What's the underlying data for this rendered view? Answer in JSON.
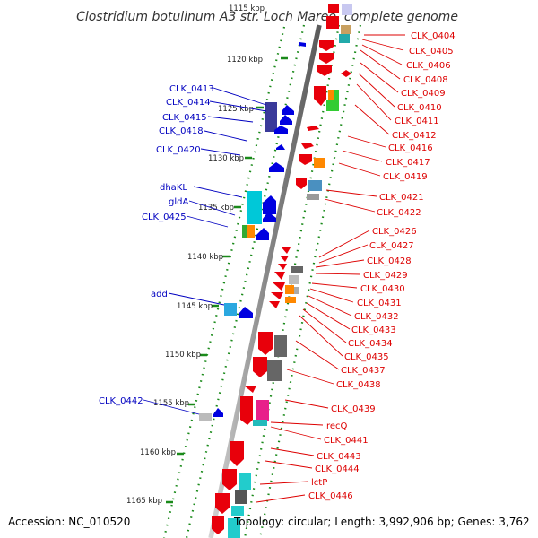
{
  "title": "Clostridium botulinum A3 str. Loch Maree, complete genome",
  "footer": {
    "accession": "Accession: NC_010520",
    "summary": "Topology: circular; Length: 3,992,906 bp; Genes: 3,762"
  },
  "scale_labels": [
    "1115 kbp",
    "1120 kbp",
    "1125 kbp",
    "1130 kbp",
    "1135 kbp",
    "1140 kbp",
    "1145 kbp",
    "1150 kbp",
    "1155 kbp",
    "1160 kbp",
    "1165 kbp"
  ],
  "left_genes": [
    "CLK_0413",
    "CLK_0414",
    "CLK_0415",
    "CLK_0418",
    "CLK_0420",
    "dhaKL",
    "gldA",
    "CLK_0425",
    "add",
    "CLK_0442"
  ],
  "right_genes": [
    "CLK_0404",
    "CLK_0405",
    "CLK_0406",
    "CLK_0408",
    "CLK_0409",
    "CLK_0410",
    "CLK_0411",
    "CLK_0412",
    "CLK_0416",
    "CLK_0417",
    "CLK_0419",
    "CLK_0421",
    "CLK_0422",
    "CLK_0426",
    "CLK_0427",
    "CLK_0428",
    "CLK_0429",
    "CLK_0430",
    "CLK_0431",
    "CLK_0432",
    "CLK_0433",
    "CLK_0434",
    "CLK_0435",
    "CLK_0437",
    "CLK_0438",
    "CLK_0439",
    "recQ",
    "CLK_0441",
    "CLK_0443",
    "CLK_0444",
    "lctP",
    "CLK_0446"
  ],
  "colors": {
    "forward_strand": "#e8000b",
    "reverse_strand": "#0000e0",
    "backbone": "#8a8a8a",
    "guide_dots": "#1a8a1a",
    "tick": "#1a8a1a",
    "label_left": "#0000c0",
    "label_right": "#dd0000"
  }
}
